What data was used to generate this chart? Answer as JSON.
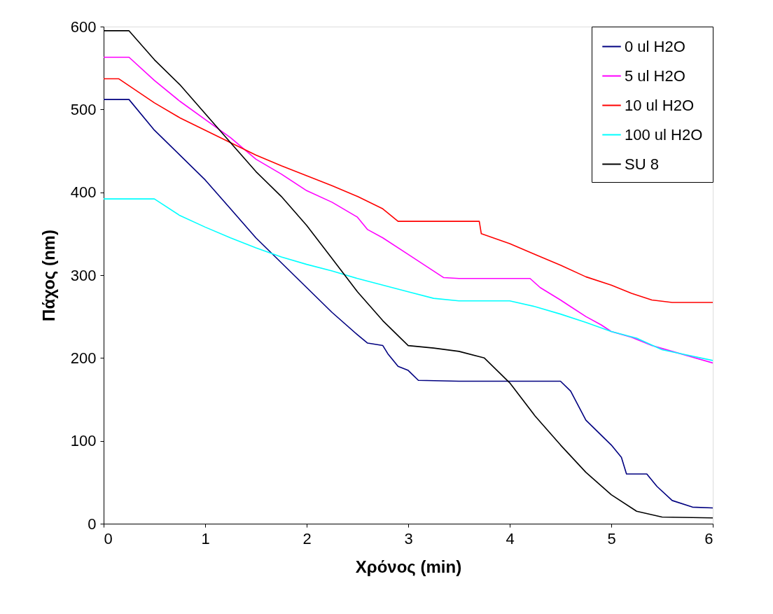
{
  "chart_data": {
    "type": "line",
    "xlabel": "Χρόνος (min)",
    "ylabel": "Πάχος (nm)",
    "xlim": [
      0,
      6
    ],
    "ylim": [
      0,
      600
    ],
    "xticks": [
      0,
      1,
      2,
      3,
      4,
      5,
      6
    ],
    "yticks": [
      0,
      100,
      200,
      300,
      400,
      500,
      600
    ],
    "grid": false,
    "legend": "top right",
    "marker": "none",
    "line_style": "solid",
    "series": [
      {
        "name": "0 ul H2O",
        "color": "#000080",
        "x": [
          0,
          0.25,
          0.5,
          0.75,
          1,
          1.25,
          1.5,
          1.75,
          2,
          2.25,
          2.5,
          2.6,
          2.75,
          2.8,
          2.9,
          3,
          3.1,
          3.5,
          4,
          4.5,
          4.6,
          4.75,
          5,
          5.1,
          5.15,
          5.35,
          5.45,
          5.6,
          5.8,
          6
        ],
        "values": [
          512,
          512,
          475,
          445,
          415,
          380,
          345,
          315,
          285,
          255,
          228,
          218,
          215,
          205,
          190,
          185,
          173,
          172,
          172,
          172,
          160,
          125,
          95,
          80,
          60,
          60,
          45,
          28,
          20,
          19
        ]
      },
      {
        "name": "5 ul H2O",
        "color": "#ff00ff",
        "x": [
          0,
          0.25,
          0.5,
          0.75,
          1,
          1.25,
          1.5,
          1.75,
          2,
          2.25,
          2.5,
          2.6,
          2.75,
          3,
          3.25,
          3.35,
          3.5,
          4.2,
          4.3,
          4.5,
          4.6,
          4.75,
          4.9,
          5,
          5.2,
          5.4,
          5.6,
          6
        ],
        "values": [
          563,
          563,
          535,
          510,
          488,
          466,
          440,
          422,
          402,
          388,
          370,
          355,
          345,
          325,
          305,
          297,
          296,
          296,
          285,
          270,
          262,
          250,
          240,
          232,
          225,
          215,
          208,
          194
        ]
      },
      {
        "name": "10 ul H2O",
        "color": "#ff0000",
        "x": [
          0,
          0.15,
          0.5,
          0.75,
          1,
          1.25,
          1.5,
          1.75,
          2,
          2.25,
          2.5,
          2.75,
          2.9,
          3.7,
          3.72,
          4,
          4.25,
          4.5,
          4.75,
          5,
          5.2,
          5.4,
          5.6,
          6
        ],
        "values": [
          537,
          537,
          508,
          490,
          475,
          460,
          445,
          432,
          420,
          408,
          395,
          380,
          365,
          365,
          350,
          338,
          325,
          312,
          298,
          288,
          278,
          270,
          267,
          267
        ]
      },
      {
        "name": "100 ul H2O",
        "color": "#00ffff",
        "x": [
          0,
          0.5,
          0.75,
          1,
          1.25,
          1.5,
          1.75,
          2,
          2.25,
          2.5,
          2.75,
          3,
          3.25,
          3.5,
          4,
          4.25,
          4.5,
          4.75,
          5,
          5.25,
          5.5,
          6
        ],
        "values": [
          392,
          392,
          372,
          358,
          345,
          333,
          322,
          313,
          305,
          296,
          288,
          280,
          272,
          269,
          269,
          262,
          253,
          243,
          232,
          224,
          210,
          197
        ]
      },
      {
        "name": "SU 8",
        "color": "#000000",
        "x": [
          0,
          0.25,
          0.5,
          0.75,
          1,
          1.25,
          1.5,
          1.75,
          2,
          2.25,
          2.5,
          2.75,
          3,
          3.25,
          3.5,
          3.75,
          4,
          4.25,
          4.5,
          4.75,
          5,
          5.25,
          5.5,
          6
        ],
        "values": [
          595,
          595,
          560,
          530,
          495,
          460,
          425,
          395,
          360,
          320,
          280,
          245,
          215,
          212,
          208,
          200,
          170,
          130,
          95,
          62,
          35,
          15,
          8,
          7
        ]
      }
    ]
  }
}
